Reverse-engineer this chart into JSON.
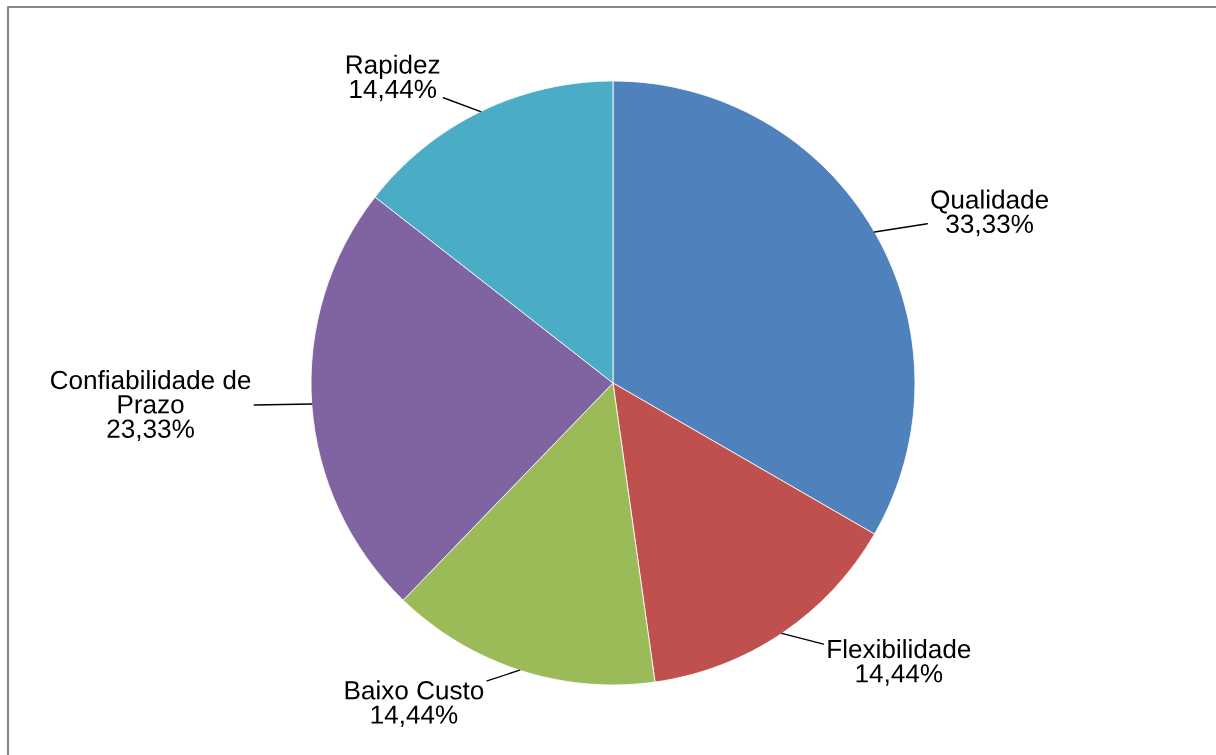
{
  "chart_data": {
    "type": "pie",
    "categories": [
      "Qualidade",
      "Flexibilidade",
      "Baixo Custo",
      "Confiabilidade de Prazo",
      "Rapidez"
    ],
    "values": [
      33.33,
      14.44,
      14.44,
      23.33,
      14.44
    ],
    "colors": [
      "#4f81bd",
      "#c0504d",
      "#9bbb59",
      "#8064a2",
      "#4bacc6"
    ],
    "value_labels": [
      "33,33%",
      "14,44%",
      "14,44%",
      "23,33%",
      "14,44%"
    ]
  }
}
